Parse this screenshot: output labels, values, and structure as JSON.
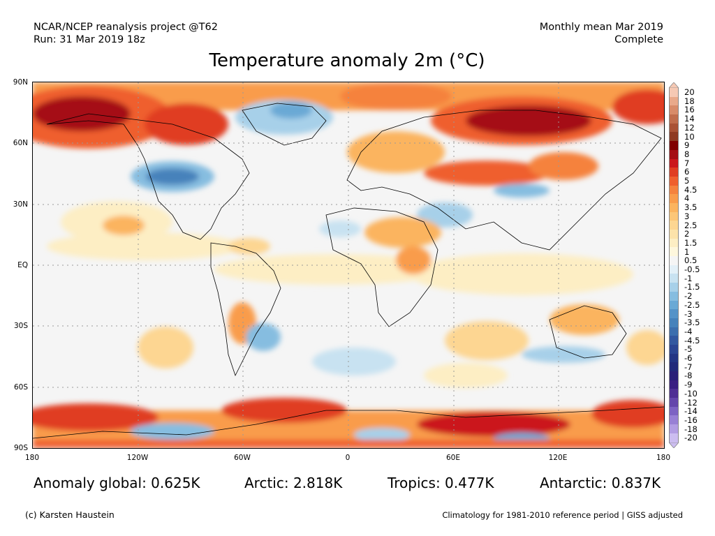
{
  "header": {
    "source_line": "NCAR/NCEP reanalysis project @T62",
    "run_line": "Run: 31 Mar 2019 18z",
    "period_line": "Monthly mean Mar 2019",
    "status_line": "Complete"
  },
  "title": "Temperature anomaly 2m (°C)",
  "axes": {
    "lat_labels": [
      "90N",
      "60N",
      "30N",
      "EQ",
      "30S",
      "60S",
      "90S"
    ],
    "lon_labels": [
      "180",
      "120W",
      "60W",
      "0",
      "60E",
      "120E",
      "180"
    ]
  },
  "legend": {
    "labels": [
      "20",
      "18",
      "16",
      "14",
      "12",
      "10",
      "9",
      "8",
      "7",
      "6",
      "5",
      "4.5",
      "4",
      "3.5",
      "3",
      "2.5",
      "2",
      "1.5",
      "1",
      "0.5",
      "-0.5",
      "-1",
      "-1.5",
      "-2",
      "-2.5",
      "-3",
      "-3.5",
      "-4",
      "-4.5",
      "-5",
      "-6",
      "-7",
      "-8",
      "-9",
      "-10",
      "-12",
      "-14",
      "-16",
      "-18",
      "-20"
    ],
    "colors": [
      "#f6c9b4",
      "#e9a98a",
      "#d88b69",
      "#c06d4c",
      "#a95235",
      "#8e3a22",
      "#800000",
      "#a50f15",
      "#cb181d",
      "#e03d22",
      "#ef5f2e",
      "#f5823e",
      "#f99c4b",
      "#fbb45f",
      "#fcc677",
      "#fdd692",
      "#fde3aa",
      "#fdeec4",
      "#fef7dd",
      "#f5f5f5",
      "#e3f0f8",
      "#c8e2f1",
      "#a7d0e9",
      "#86bde0",
      "#6aa9d5",
      "#5593c8",
      "#4682bb",
      "#3c6fae",
      "#3258a0",
      "#2a4593",
      "#233584",
      "#222a7a",
      "#2a2078",
      "#3b1f82",
      "#4f2f94",
      "#6446ab",
      "#7d63c3",
      "#9880d5",
      "#b29de3",
      "#ccbdf0"
    ]
  },
  "stats": {
    "global": "Anomaly global: 0.625K",
    "arctic": "Arctic: 2.818K",
    "tropics": "Tropics: 0.477K",
    "antarctic": "Antarctic: 0.837K"
  },
  "footer": {
    "credit": "(c) Karsten Haustein",
    "note": "Climatology for 1981-2010 reference period | GISS adjusted"
  }
}
